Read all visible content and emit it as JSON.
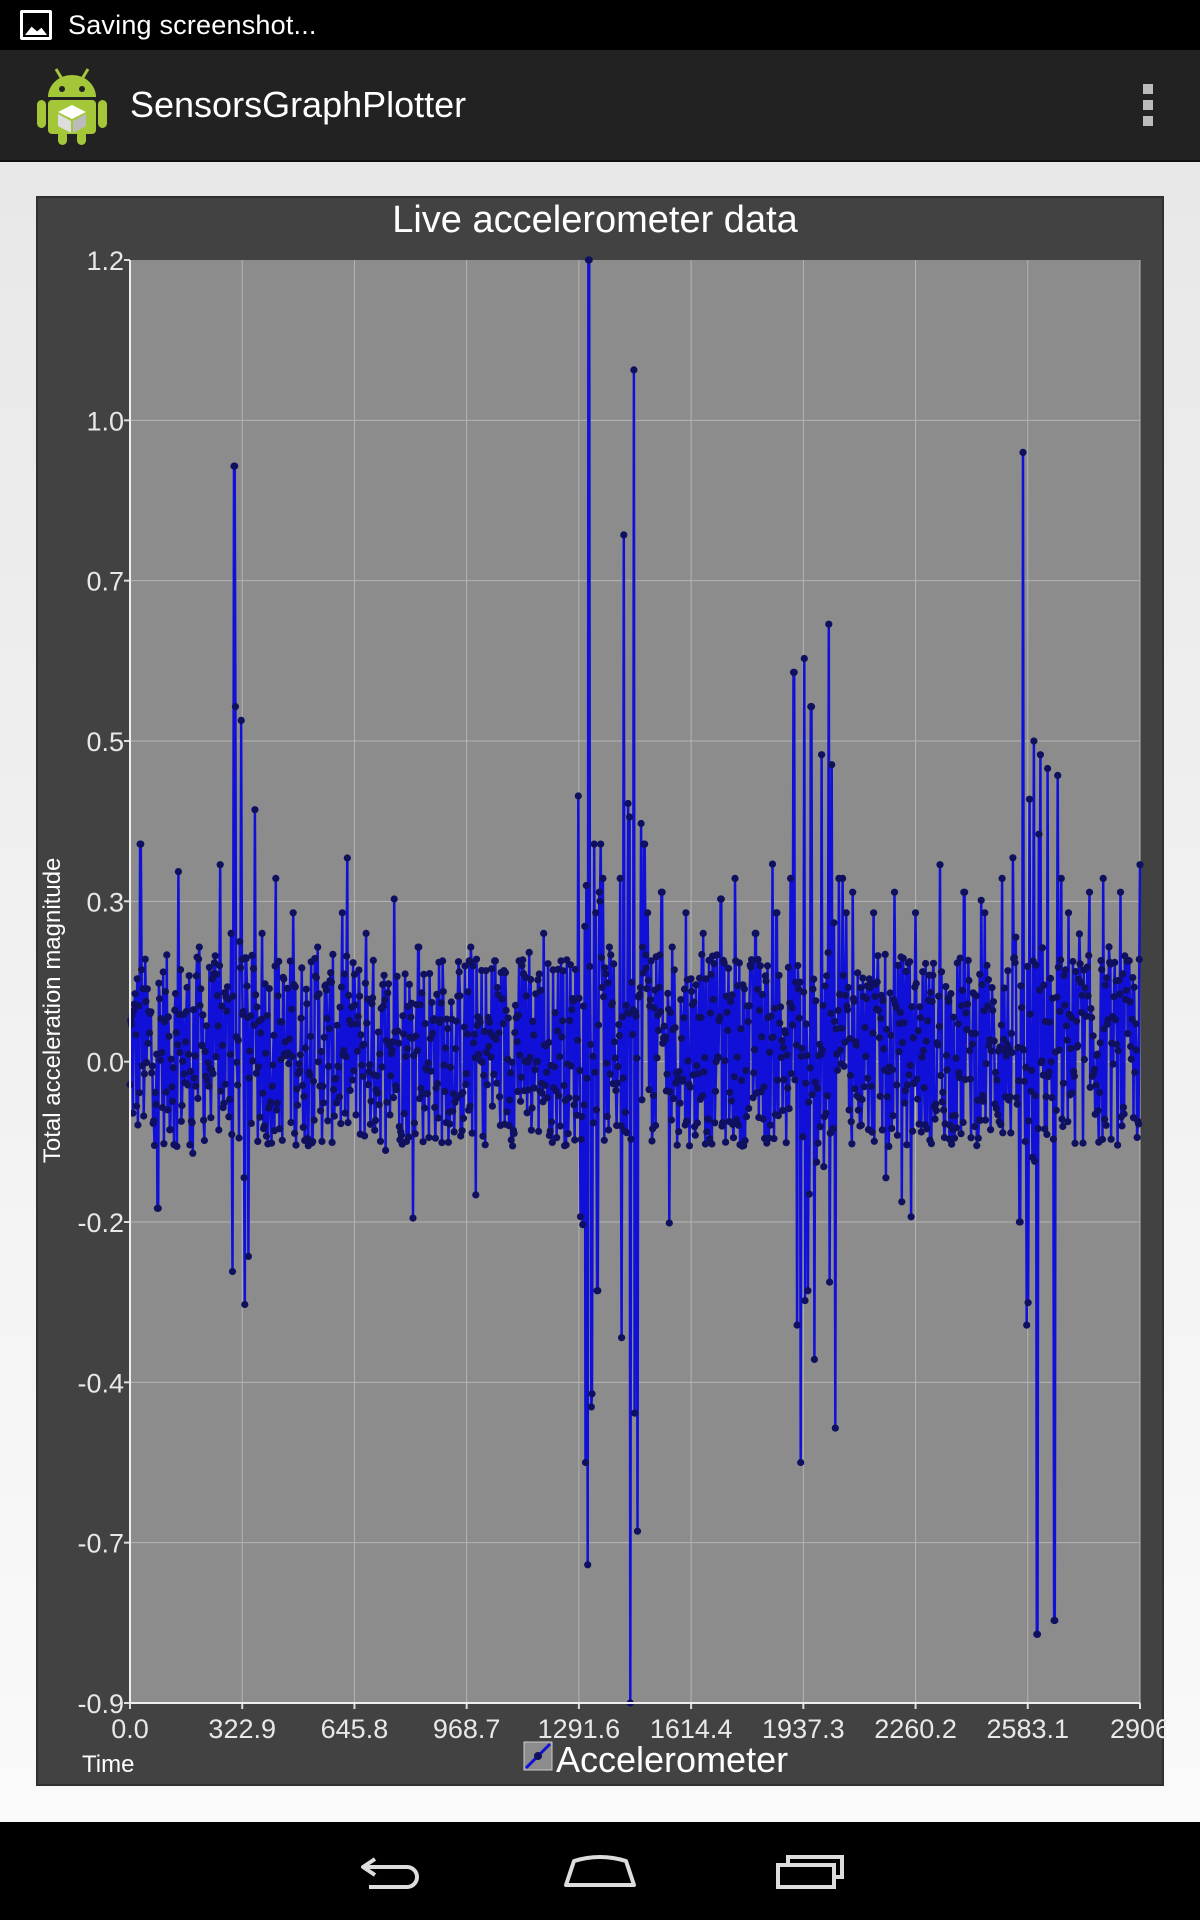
{
  "status_bar": {
    "notification_icon": "image-icon",
    "text": "Saving screenshot..."
  },
  "action_bar": {
    "app_icon": "android-robot-icon",
    "title": "SensorsGraphPlotter",
    "overflow_icon": "overflow-menu-icon"
  },
  "navigation_bar": {
    "back_icon": "back-icon",
    "home_icon": "home-icon",
    "recents_icon": "recents-icon"
  },
  "chart_data": {
    "type": "line",
    "title": "Live accelerometer data",
    "xlabel": "Time",
    "ylabel": "Total acceleration magnitude",
    "xlim": [
      0,
      2906
    ],
    "ylim": [
      -0.9,
      1.2
    ],
    "x_ticks": [
      "0.0",
      "322.9",
      "645.8",
      "968.7",
      "1291.6",
      "1614.4",
      "1937.3",
      "2260.2",
      "2583.1",
      "2906"
    ],
    "y_ticks": [
      "1.2",
      "1.0",
      "0.7",
      "0.5",
      "0.3",
      "0.0",
      "-0.2",
      "-0.4",
      "-0.7",
      "-0.9"
    ],
    "grid": true,
    "legend_position": "bottom-center",
    "colors": {
      "plot_background": "#8c8c8c",
      "frame_background": "#424242",
      "line": "#1010d8",
      "marker": "#101060",
      "grid": "#b4b4b4",
      "text": "#ffffff",
      "tick_label": "#e8e8e8"
    },
    "series": [
      {
        "name": "Accelerometer",
        "sample_count": 1400,
        "baseline": 0.05,
        "noise": 0.1,
        "x": [
          0,
          30,
          80,
          140,
          180,
          200,
          260,
          290,
          300,
          302,
          303,
          304,
          320,
          340,
          360,
          380,
          420,
          470,
          540,
          610,
          680,
          760,
          830,
          900,
          980,
          1050,
          1120,
          1190,
          1240,
          1290,
          1310,
          1320,
          1330,
          1335,
          1340,
          1345,
          1350,
          1355,
          1360,
          1380,
          1410,
          1420,
          1440,
          1450,
          1460,
          1470,
          1475,
          1480,
          1490,
          1500,
          1530,
          1560,
          1600,
          1650,
          1700,
          1740,
          1800,
          1860,
          1900,
          1910,
          1920,
          1930,
          1940,
          1950,
          1960,
          1970,
          1990,
          2010,
          2030,
          2040,
          2050,
          2060,
          2080,
          2140,
          2200,
          2260,
          2330,
          2400,
          2460,
          2510,
          2540,
          2560,
          2570,
          2580,
          2600,
          2610,
          2620,
          2640,
          2660,
          2670,
          2680,
          2700,
          2760,
          2800,
          2850,
          2906
        ],
        "y": [
          0.0,
          0.35,
          -0.18,
          0.31,
          -0.1,
          0.2,
          0.32,
          0.22,
          0.9,
          -0.37,
          0.55,
          0.18,
          0.53,
          -0.25,
          0.4,
          0.22,
          0.3,
          0.25,
          0.2,
          0.25,
          0.22,
          0.27,
          0.2,
          0.18,
          0.2,
          0.18,
          0.18,
          0.22,
          0.18,
          0.42,
          -0.55,
          1.2,
          -0.45,
          0.35,
          0.25,
          -0.3,
          0.28,
          0.35,
          0.3,
          0.2,
          0.3,
          0.8,
          -0.9,
          1.04,
          -0.65,
          0.38,
          0.2,
          0.35,
          0.25,
          0.18,
          0.28,
          0.2,
          0.25,
          0.22,
          0.27,
          0.3,
          0.22,
          0.25,
          0.3,
          0.6,
          -0.35,
          -0.55,
          0.62,
          -0.3,
          0.55,
          -0.4,
          0.48,
          0.67,
          -0.5,
          0.3,
          0.3,
          0.25,
          0.28,
          0.25,
          0.28,
          0.25,
          0.32,
          0.28,
          0.25,
          0.3,
          0.33,
          -0.2,
          0.92,
          -0.35,
          0.5,
          -0.8,
          0.48,
          0.46,
          -0.78,
          0.45,
          0.3,
          0.25,
          0.28,
          0.3,
          0.28,
          0.32
        ]
      }
    ]
  }
}
